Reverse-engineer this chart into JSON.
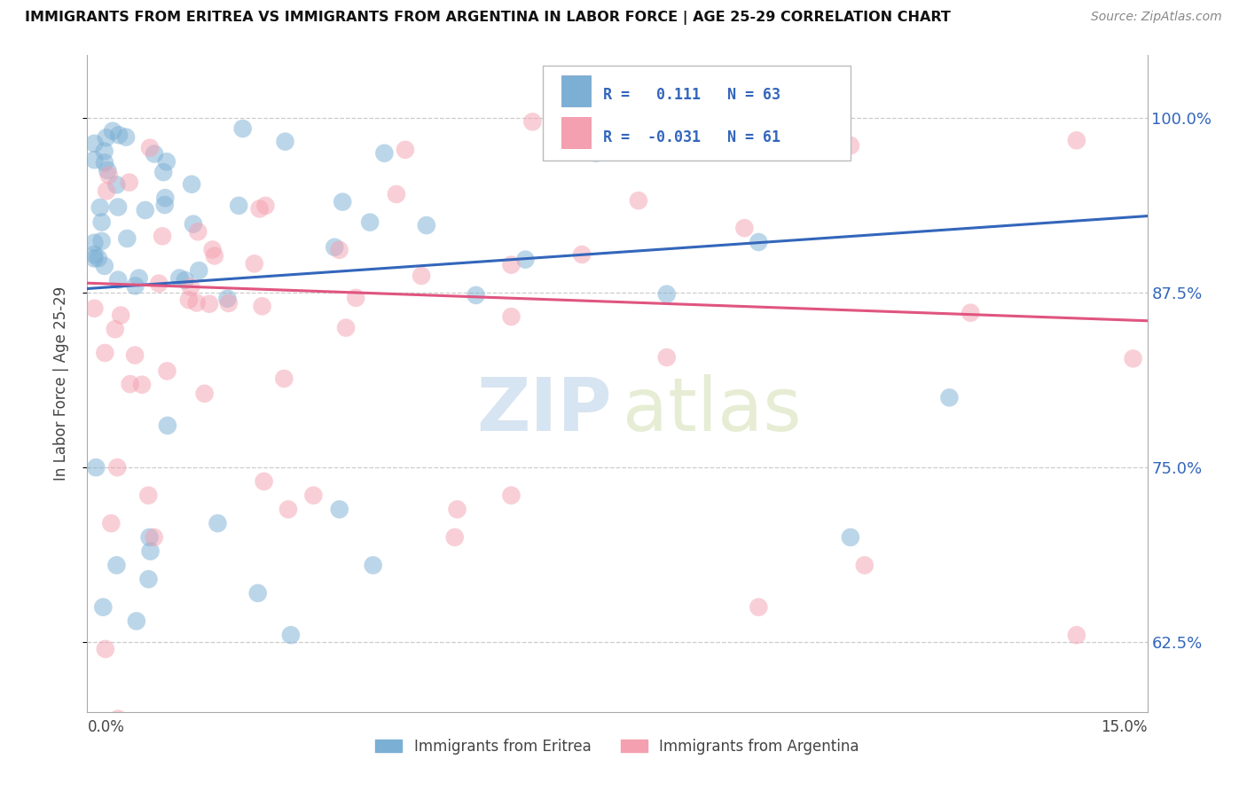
{
  "title": "IMMIGRANTS FROM ERITREA VS IMMIGRANTS FROM ARGENTINA IN LABOR FORCE | AGE 25-29 CORRELATION CHART",
  "source": "Source: ZipAtlas.com",
  "ylabel": "In Labor Force | Age 25-29",
  "yticks": [
    0.625,
    0.75,
    0.875,
    1.0
  ],
  "ytick_labels": [
    "62.5%",
    "75.0%",
    "87.5%",
    "100.0%"
  ],
  "xmin": 0.0,
  "xmax": 0.15,
  "ymin": 0.575,
  "ymax": 1.045,
  "legend_R1": "0.111",
  "legend_N1": "63",
  "legend_R2": "-0.031",
  "legend_N2": "61",
  "label1": "Immigrants from Eritrea",
  "label2": "Immigrants from Argentina",
  "color1": "#7BAFD4",
  "color2": "#F4A0B0",
  "trendline1_color": "#3366BB",
  "trendline2_color": "#E05580",
  "background_color": "#FFFFFF",
  "trendline1_y0": 0.878,
  "trendline1_y1": 0.93,
  "trendline2_y0": 0.882,
  "trendline2_y1": 0.855
}
